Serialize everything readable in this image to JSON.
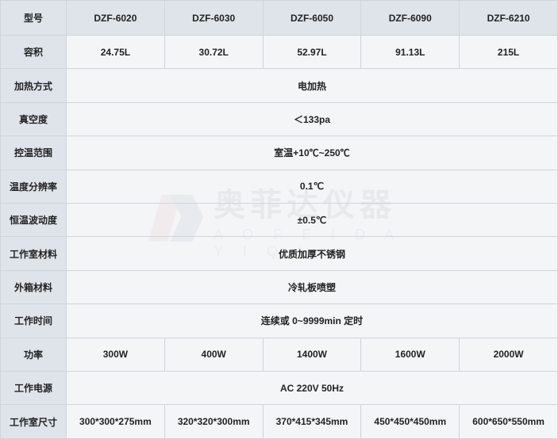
{
  "watermark": {
    "cn": "奥菲达仪器",
    "en": "A O F E I D A Y I Q I",
    "logo_colors": {
      "red": "#d94b4b",
      "navy": "#2a3b5a"
    }
  },
  "table": {
    "header_label": "型号",
    "models": [
      "DZF-6020",
      "DZF-6030",
      "DZF-6050",
      "DZF-6090",
      "DZF-6210"
    ],
    "rows": [
      {
        "label": "容积",
        "type": "per-model",
        "values": [
          "24.75L",
          "30.72L",
          "52.97L",
          "91.13L",
          "215L"
        ]
      },
      {
        "label": "加热方式",
        "type": "span",
        "value": "电加热"
      },
      {
        "label": "真空度",
        "type": "span",
        "value": "＜133pa"
      },
      {
        "label": "控温范围",
        "type": "span",
        "value": "室温+10℃~250℃"
      },
      {
        "label": "温度分辨率",
        "type": "span",
        "value": "0.1℃"
      },
      {
        "label": "恒温波动度",
        "type": "span",
        "value": "±0.5℃"
      },
      {
        "label": "工作室材料",
        "type": "span",
        "value": "优质加厚不锈钢"
      },
      {
        "label": "外箱材料",
        "type": "span",
        "value": "冷轧板喷塑"
      },
      {
        "label": "工作时间",
        "type": "span",
        "value": "连续或 0~9999min 定时"
      },
      {
        "label": "功率",
        "type": "per-model",
        "values": [
          "300W",
          "400W",
          "1400W",
          "1600W",
          "2000W"
        ]
      },
      {
        "label": "工作电源",
        "type": "span",
        "value": "AC  220V  50Hz"
      },
      {
        "label": "工作室尺寸",
        "type": "per-model",
        "values": [
          "300*300*275mm",
          "320*320*300mm",
          "370*415*345mm",
          "450*450*450mm",
          "600*650*550mm"
        ]
      }
    ],
    "colors": {
      "border": "#cfd5db",
      "header_bg": "#dfe4ea",
      "cell_bg": "#eaedf1",
      "text": "#222222"
    }
  }
}
